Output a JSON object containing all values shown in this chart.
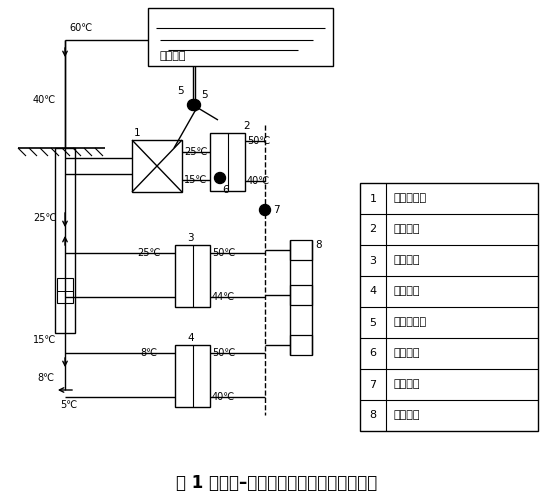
{
  "title": "图 1 污水源–集中供热复合采暖系统工艺图",
  "title_fontsize": 12,
  "bg_color": "#ffffff",
  "line_color": "#000000",
  "legend_items": [
    [
      "1",
      "板式换热器"
    ],
    [
      "2",
      "一级热泵"
    ],
    [
      "3",
      "二级热泵"
    ],
    [
      "4",
      "三级热泵"
    ],
    [
      "5",
      "温泉尾水泵"
    ],
    [
      "6",
      "中介水泵"
    ],
    [
      "7",
      "用户水泵"
    ],
    [
      "8",
      "空调末端"
    ]
  ],
  "pool_label": "温泉水池"
}
